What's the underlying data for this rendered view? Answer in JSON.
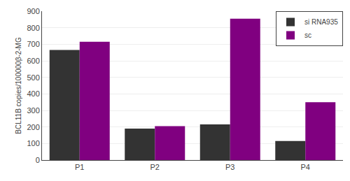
{
  "chart_data": {
    "type": "bar",
    "categories": [
      "P1",
      "P2",
      "P3",
      "P4"
    ],
    "series": [
      {
        "name": "si RNA935",
        "color": "#333333",
        "values": [
          665,
          190,
          215,
          115
        ]
      },
      {
        "name": "sc",
        "color": "#800080",
        "values": [
          715,
          205,
          855,
          350
        ]
      }
    ],
    "ylabel": "BCL11B copies/100000β-2-MG",
    "ylim": [
      0,
      900
    ],
    "yticks": [
      0,
      100,
      200,
      300,
      400,
      500,
      600,
      700,
      800,
      900
    ],
    "grid": true,
    "legend": "upper right"
  }
}
